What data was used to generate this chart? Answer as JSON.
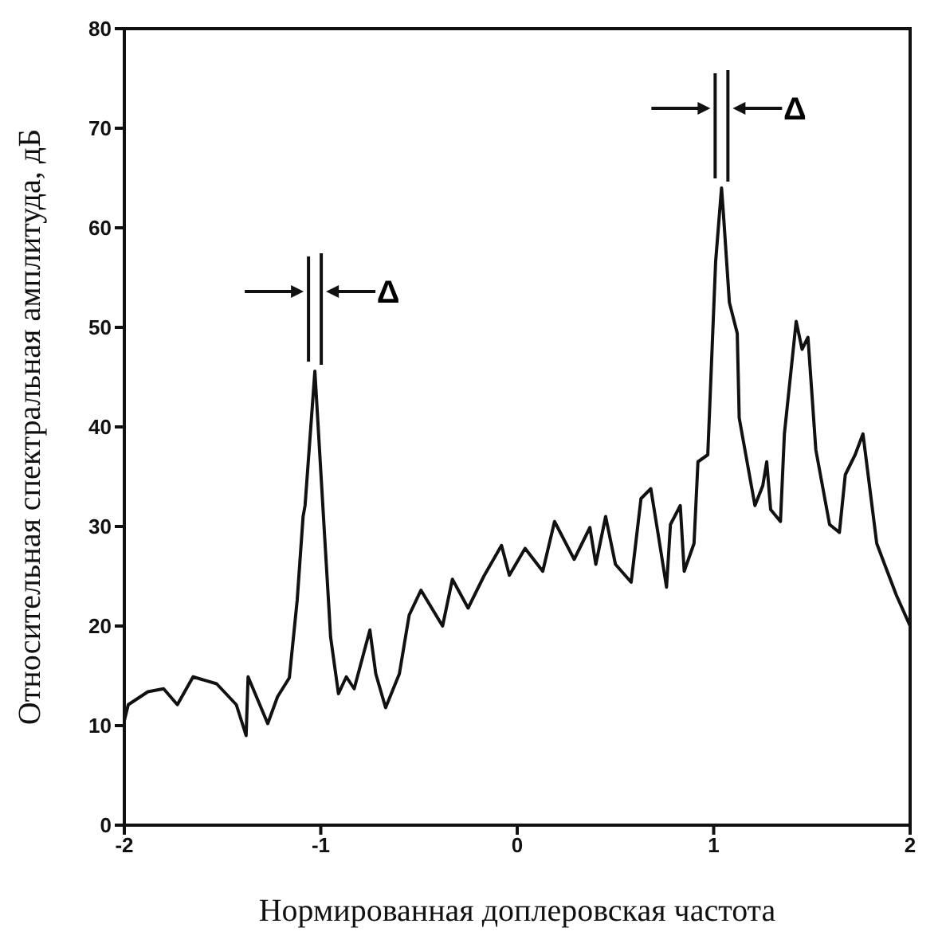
{
  "chart_data": {
    "type": "line",
    "xlabel": "Нормированная доплеровская частота",
    "ylabel": "Относительная спектральная амплитуда, дБ",
    "xlim": [
      -2,
      2
    ],
    "xticks": [
      -2,
      -1,
      0,
      1,
      2
    ],
    "ylim": [
      0,
      80
    ],
    "yticks": [
      0,
      10,
      20,
      30,
      40,
      50,
      60,
      70,
      80
    ],
    "marker": "none",
    "line_style": "solid",
    "annotations": [
      {
        "text": "Δ",
        "x": -1.03,
        "y": 45.6
      },
      {
        "text": "Δ",
        "x": 1.04,
        "y": 64
      }
    ],
    "series": [
      {
        "color": "#111111",
        "x": [
          -2,
          -1.98,
          -1.88,
          -1.8,
          -1.73,
          -1.65,
          -1.53,
          -1.43,
          -1.38,
          -1.37,
          -1.27,
          -1.22,
          -1.16,
          -1.12,
          -1.09,
          -1.08,
          -1.03,
          -0.98,
          -0.96,
          -0.95,
          -0.91,
          -0.87,
          -0.83,
          -0.75,
          -0.72,
          -0.67,
          -0.6,
          -0.55,
          -0.49,
          -0.38,
          -0.33,
          -0.25,
          -0.17,
          -0.08,
          -0.04,
          0.04,
          0.13,
          0.19,
          0.29,
          0.37,
          0.4,
          0.45,
          0.5,
          0.58,
          0.63,
          0.68,
          0.72,
          0.76,
          0.78,
          0.83,
          0.85,
          0.9,
          0.92,
          0.97,
          1.01,
          1.04,
          1.05,
          1.08,
          1.12,
          1.13,
          1.21,
          1.25,
          1.27,
          1.29,
          1.34,
          1.36,
          1.42,
          1.45,
          1.48,
          1.52,
          1.59,
          1.64,
          1.67,
          1.72,
          1.76,
          1.83,
          1.87,
          1.93,
          2.0
        ],
        "values": [
          10.5,
          12.1,
          13.4,
          13.7,
          12.1,
          14.9,
          14.2,
          12.1,
          9,
          14.9,
          10.2,
          12.9,
          14.8,
          22.6,
          31,
          32.1,
          45.6,
          28.9,
          22.3,
          18.9,
          13.2,
          14.9,
          13.7,
          19.6,
          15.2,
          11.8,
          15.2,
          21.1,
          23.6,
          20,
          24.7,
          21.8,
          25,
          28.1,
          25.1,
          27.8,
          25.5,
          30.5,
          26.7,
          29.9,
          26.2,
          31,
          26.2,
          24.4,
          32.8,
          33.8,
          28.9,
          23.9,
          30.2,
          32.1,
          25.5,
          28.3,
          36.5,
          37.2,
          56.6,
          64,
          61.3,
          52.5,
          49.4,
          40.9,
          32.1,
          34.1,
          36.5,
          31.7,
          30.5,
          39.3,
          50.6,
          47.8,
          49,
          37.7,
          30.2,
          29.4,
          35.2,
          37.2,
          39.3,
          28.3,
          26.2,
          23.1,
          20
        ]
      }
    ]
  }
}
